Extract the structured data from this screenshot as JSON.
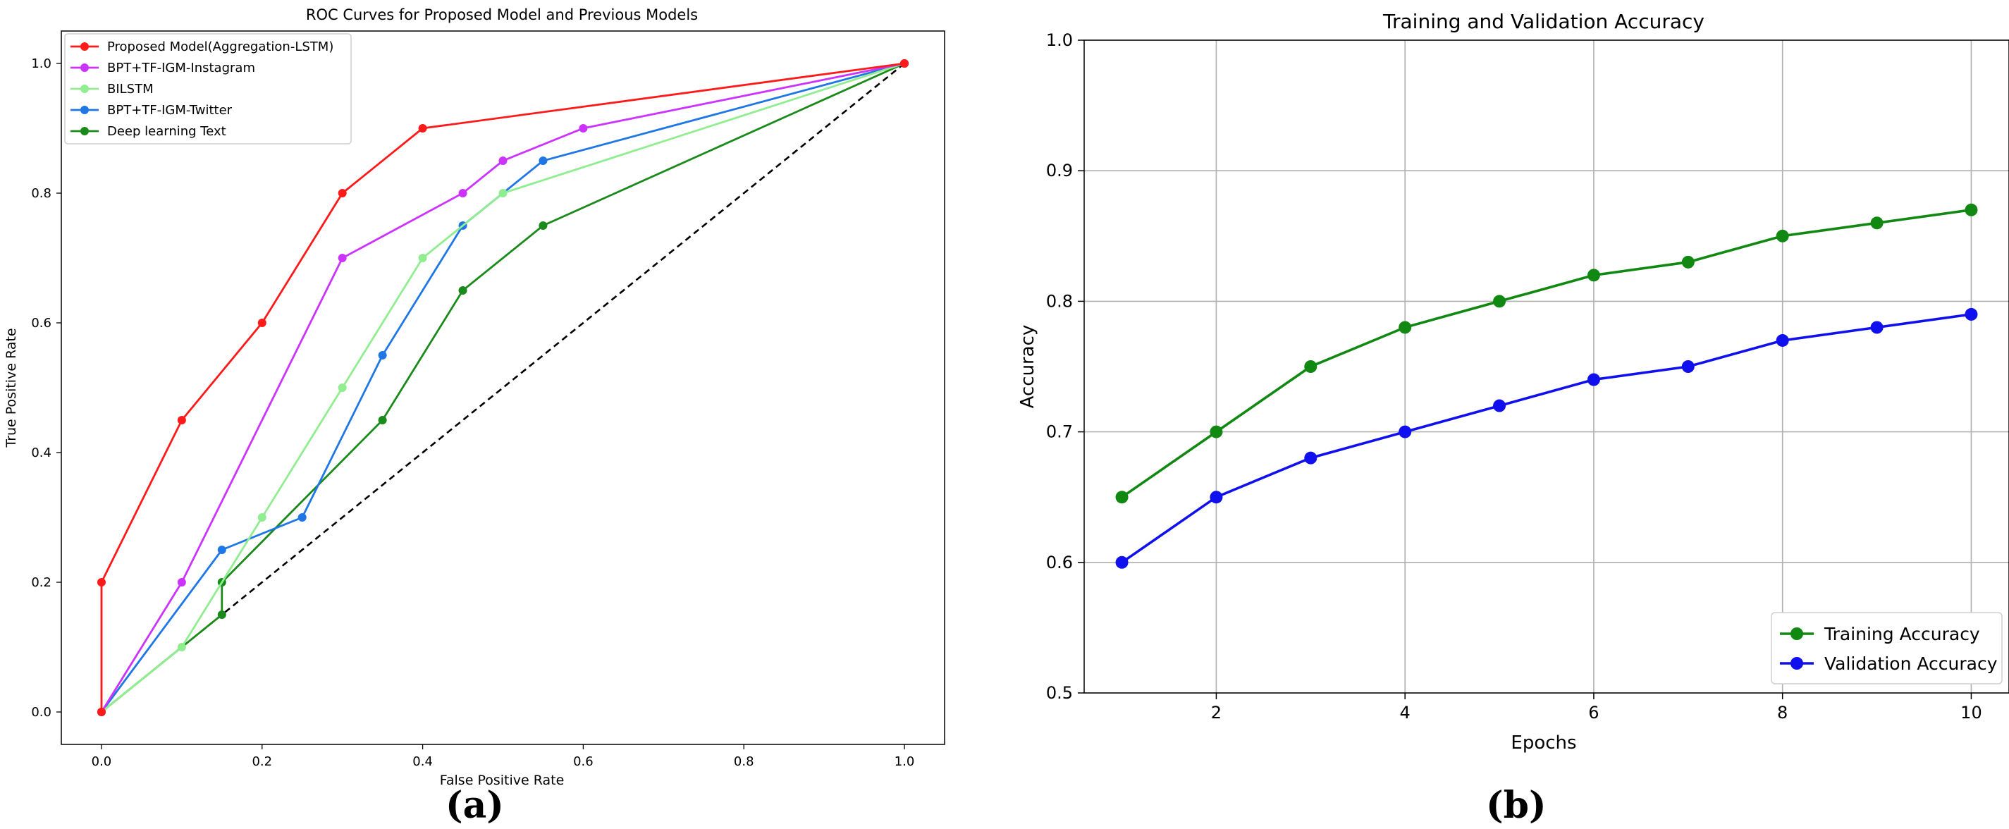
{
  "chart_data": [
    {
      "type": "line",
      "title": "ROC Curves for Proposed Model and Previous Models",
      "xlabel": "False Positive Rate",
      "ylabel": "True Positive Rate",
      "xlim": [
        -0.05,
        1.05
      ],
      "ylim": [
        -0.05,
        1.05
      ],
      "xticks": [
        "0.0",
        "0.2",
        "0.4",
        "0.6",
        "0.8",
        "1.0"
      ],
      "yticks": [
        "0.0",
        "0.2",
        "0.4",
        "0.6",
        "0.8",
        "1.0"
      ],
      "grid": false,
      "legend_position": "top-left",
      "panel_label": "(a)",
      "series": [
        {
          "name": "Proposed Model(Aggregation-LSTM)",
          "color": "#ff1a1a",
          "x": [
            0,
            0,
            0.1,
            0.2,
            0.3,
            0.4,
            1.0
          ],
          "y": [
            0,
            0.2,
            0.45,
            0.6,
            0.8,
            0.9,
            1.0
          ]
        },
        {
          "name": "BPT+TF-IGM-Instagram",
          "color": "#cc33ff",
          "x": [
            0,
            0.1,
            0.3,
            0.45,
            0.5,
            0.6,
            1.0
          ],
          "y": [
            0,
            0.2,
            0.7,
            0.8,
            0.85,
            0.9,
            1.0
          ]
        },
        {
          "name": "BILSTM",
          "color": "#90ee90",
          "x": [
            0,
            0.1,
            0.2,
            0.3,
            0.4,
            0.5,
            1.0
          ],
          "y": [
            0,
            0.1,
            0.3,
            0.5,
            0.7,
            0.8,
            1.0
          ]
        },
        {
          "name": "BPT+TF-IGM-Twitter",
          "color": "#1f77e6",
          "x": [
            0,
            0.15,
            0.25,
            0.35,
            0.45,
            0.55,
            1.0
          ],
          "y": [
            0,
            0.25,
            0.3,
            0.55,
            0.75,
            0.85,
            1.0
          ]
        },
        {
          "name": "Deep learning Text",
          "color": "#1a8a1a",
          "x": [
            0,
            0.15,
            0.15,
            0.35,
            0.45,
            0.55,
            1.0
          ],
          "y": [
            0,
            0.15,
            0.2,
            0.45,
            0.65,
            0.75,
            1.0
          ]
        }
      ],
      "reference_line": {
        "x": [
          0,
          1
        ],
        "y": [
          0,
          1
        ],
        "color": "#000000",
        "style": "dashed"
      }
    },
    {
      "type": "line",
      "title": "Training and Validation Accuracy",
      "xlabel": "Epochs",
      "ylabel": "Accuracy",
      "xlim": [
        0.6,
        10.4
      ],
      "ylim": [
        0.5,
        1.0
      ],
      "xticks": [
        "2",
        "4",
        "6",
        "8",
        "10"
      ],
      "yticks": [
        "0.5",
        "0.6",
        "0.7",
        "0.8",
        "0.9",
        "1.0"
      ],
      "grid": true,
      "legend_position": "bottom-right",
      "panel_label": "(b)",
      "x": [
        1,
        2,
        3,
        4,
        5,
        6,
        7,
        8,
        9,
        10
      ],
      "series": [
        {
          "name": "Training Accuracy",
          "color": "#118811",
          "values": [
            0.65,
            0.7,
            0.75,
            0.78,
            0.8,
            0.82,
            0.83,
            0.85,
            0.86,
            0.87
          ]
        },
        {
          "name": "Validation Accuracy",
          "color": "#1010ee",
          "values": [
            0.6,
            0.65,
            0.68,
            0.7,
            0.72,
            0.74,
            0.75,
            0.77,
            0.78,
            0.79
          ]
        }
      ]
    }
  ]
}
